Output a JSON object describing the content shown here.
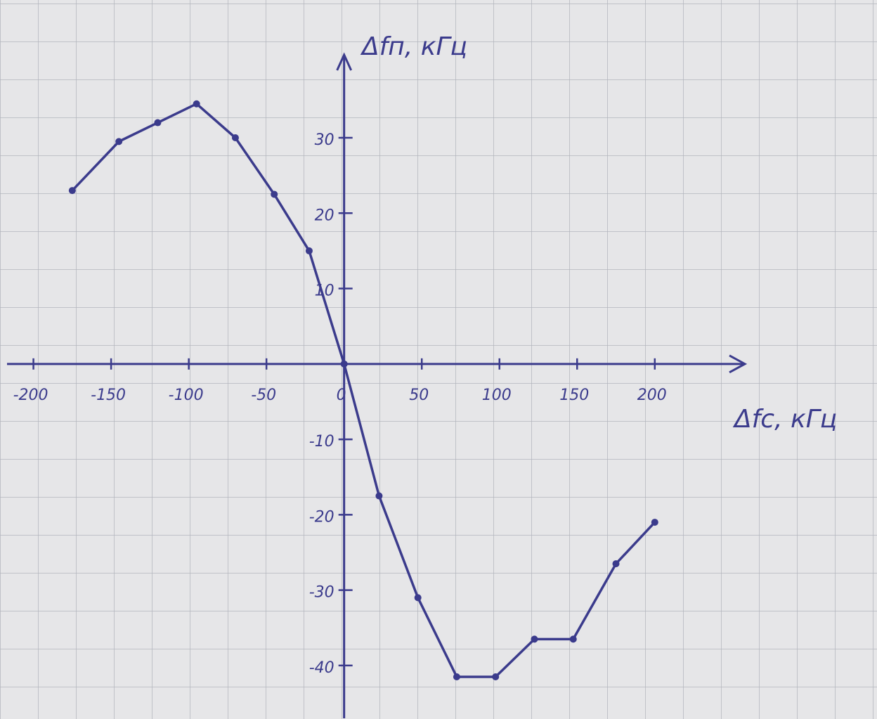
{
  "chart_data": {
    "type": "line",
    "x_label": "Δfс, кГц",
    "y_label": "Δfп, кГц",
    "series": [
      {
        "color": "#3b3b8c",
        "x": [
          -175,
          -145,
          -120,
          -95,
          -70,
          -45,
          -22.5,
          0,
          22.5,
          47.5,
          72.5,
          97.5,
          122.5,
          147.5,
          175,
          200
        ],
        "values": [
          23,
          29.5,
          32,
          34.5,
          30,
          22.5,
          15,
          0,
          -17.5,
          -31,
          -41.5,
          -41.5,
          -36.5,
          -36.5,
          -26.5,
          -21
        ]
      }
    ],
    "xlim": [
      -217,
      258
    ],
    "ylim": [
      -47,
      41
    ],
    "xticks": [
      -200,
      -150,
      -100,
      -50,
      0,
      50,
      100,
      150,
      200
    ],
    "yticks": [
      -40,
      -30,
      -20,
      -10,
      10,
      20,
      30
    ],
    "grid": true
  }
}
